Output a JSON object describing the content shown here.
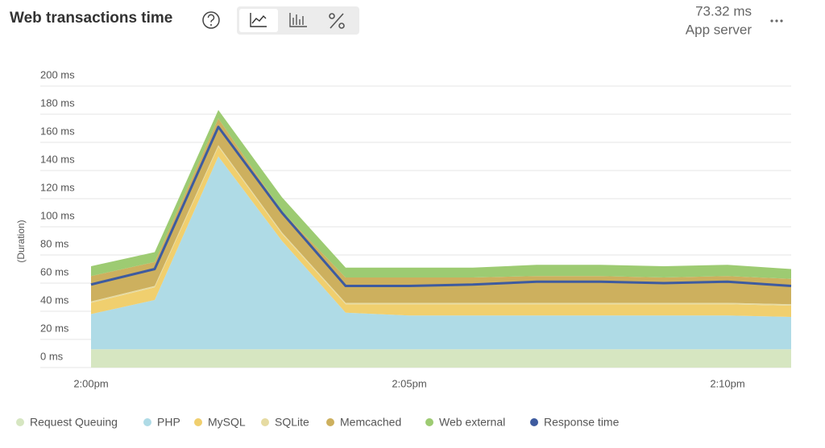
{
  "header": {
    "title": "Web transactions time",
    "value": "73.32 ms",
    "value_caption": "App server"
  },
  "chart_data": {
    "type": "area",
    "stacked": true,
    "y_label": "(Duration)",
    "categories": [
      "2:00pm",
      null,
      null,
      null,
      null,
      "2:05pm",
      null,
      null,
      null,
      null,
      "2:10pm",
      null
    ],
    "ylim": [
      0,
      200
    ],
    "yticks": [
      {
        "value": 0,
        "label": "0 ms"
      },
      {
        "value": 20,
        "label": "20 ms"
      },
      {
        "value": 40,
        "label": "40 ms"
      },
      {
        "value": 60,
        "label": "60 ms"
      },
      {
        "value": 80,
        "label": "80 ms"
      },
      {
        "value": 100,
        "label": "100 ms"
      },
      {
        "value": 120,
        "label": "120 ms"
      },
      {
        "value": 140,
        "label": "140 ms"
      },
      {
        "value": 160,
        "label": "160 ms"
      },
      {
        "value": 180,
        "label": "180 ms"
      },
      {
        "value": 200,
        "label": "200 ms"
      }
    ],
    "grid": true,
    "legend": "bottom",
    "series": [
      {
        "name": "Request Queuing",
        "color": "#d6e6c1",
        "values": [
          13,
          13,
          13,
          13,
          13,
          13,
          13,
          13,
          13,
          13,
          13,
          13
        ]
      },
      {
        "name": "PHP",
        "color": "#afdbe6",
        "values": [
          25,
          35,
          137,
          77,
          26,
          24,
          24,
          24,
          24,
          24,
          24,
          23
        ]
      },
      {
        "name": "MySQL",
        "color": "#f0cf6e",
        "values": [
          8,
          9,
          7,
          5,
          6,
          8,
          8,
          8,
          8,
          8,
          8,
          8
        ]
      },
      {
        "name": "SQLite",
        "color": "#e6dba2",
        "values": [
          1,
          1,
          1,
          1,
          1,
          1,
          1,
          1,
          1,
          1,
          1,
          1
        ]
      },
      {
        "name": "Memcached",
        "color": "#cdb05e",
        "values": [
          18,
          17,
          19,
          15,
          18,
          18,
          18,
          19,
          19,
          18,
          19,
          18
        ]
      },
      {
        "name": "Web external",
        "color": "#9dcb72",
        "values": [
          7,
          7,
          6,
          10,
          7,
          7,
          7,
          8,
          8,
          8,
          8,
          7
        ]
      },
      {
        "name": "Response time",
        "color": "#3e5b9f",
        "type": "line",
        "values": [
          59,
          70,
          171,
          110,
          58,
          58,
          59,
          61,
          61,
          60,
          61,
          58
        ]
      }
    ]
  }
}
